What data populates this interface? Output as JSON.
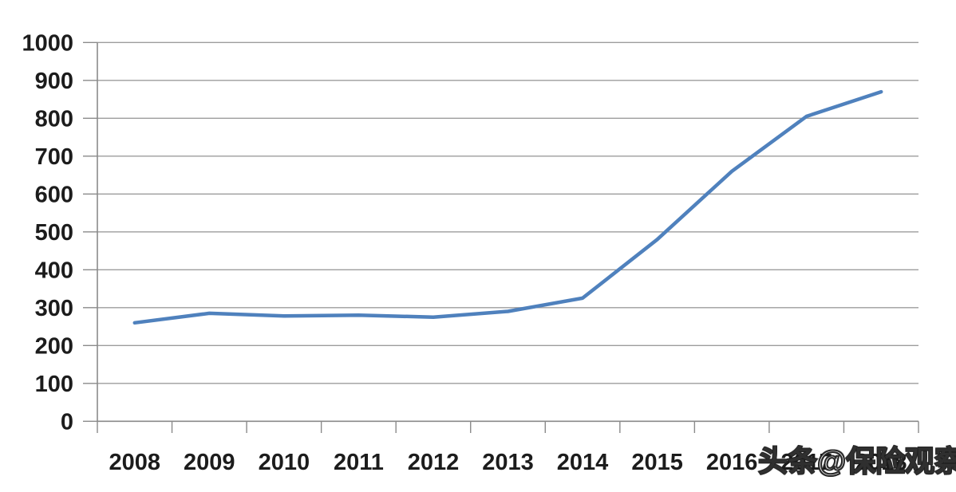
{
  "watermark": {
    "text": "头条@保险观察",
    "fill_color": "#ffffff",
    "outline_color": "#1e1e1e"
  },
  "chart_data": {
    "type": "line",
    "categories": [
      "2008",
      "2009",
      "2010",
      "2011",
      "2012",
      "2013",
      "2014",
      "2015",
      "2016",
      "2017",
      "2018"
    ],
    "values": [
      260,
      285,
      278,
      280,
      275,
      290,
      325,
      480,
      660,
      805,
      870
    ],
    "yticks": [
      0,
      100,
      200,
      300,
      400,
      500,
      600,
      700,
      800,
      900,
      1000
    ],
    "ylim": [
      0,
      1000
    ],
    "grid": true,
    "legend": false,
    "line_color": "#4f81bd",
    "grid_color": "#9d9d9d",
    "axis_color": "#8a8a8a",
    "text_color": "#1c1c1c"
  }
}
